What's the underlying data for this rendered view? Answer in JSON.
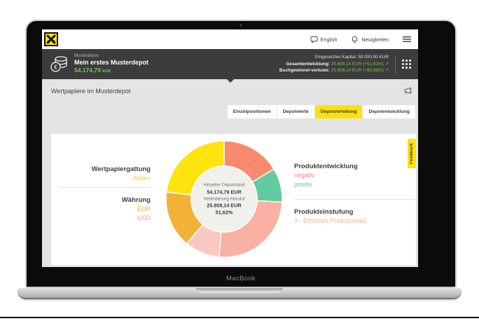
{
  "device": {
    "label": "MacBook"
  },
  "colors": {
    "accent_yellow": "#ffe10d",
    "logo_yellow": "#ffe600",
    "header_bg": "#3c3c3c",
    "green": "#7cc356",
    "content_bg": "#e4e4e4",
    "card_bg": "#ffffff"
  },
  "topbar": {
    "language_label": "English",
    "news_label": "Neuigkeiten"
  },
  "depot_header": {
    "eyebrow": "Musterdepot",
    "title": "Mein erstes Musterdepot",
    "value": "54.174,79",
    "value_currency": "EUR",
    "stats": [
      {
        "label": "Eingesetztes Kapital:",
        "value": "50.000,00 EUR",
        "value_color": "#e2e2e2"
      },
      {
        "label": "Gesamtentwicklung:",
        "value": "25.808,14 EUR (+51,62%)",
        "value_color": "#7cc356",
        "arrow": "↗"
      },
      {
        "label": "Buchgewinne/-verluste:",
        "value": "25.808,14 EUR (+90,98%)",
        "value_color": "#7cc356",
        "arrow": "↗"
      }
    ]
  },
  "page": {
    "heading": "Wertpapiere im Musterdepot"
  },
  "tabs": [
    {
      "label": "Einzelpositionen"
    },
    {
      "label": "Depotwerte"
    },
    {
      "label": "Depotverteilung"
    },
    {
      "label": "Depotentwicklung"
    }
  ],
  "active_tab_index": 2,
  "feedback_tab": {
    "label": "Feedback"
  },
  "legend": {
    "left": {
      "group1": {
        "heading": "Wertpapiergattung",
        "item1": {
          "label": "Aktien",
          "color": "#fec72f"
        }
      },
      "group2": {
        "heading": "Währung",
        "item1": {
          "label": "EUR",
          "color": "#f5a93a"
        },
        "item2": {
          "label": "USD",
          "color": "#f89a8a"
        }
      }
    },
    "right": {
      "group1": {
        "heading": "Produktentwicklung",
        "item1": {
          "label": "negativ",
          "color": "#f98a6d"
        },
        "item2": {
          "label": "positiv",
          "color": "#5fc998"
        }
      },
      "group2": {
        "heading": "Produkteinstufung",
        "item1": {
          "label": "3 - Erhöhtes Produktrisiko",
          "color": "#f8afa0"
        }
      }
    }
  },
  "chart_data": {
    "type": "pie",
    "variant": "donut",
    "start_angle_deg": 0,
    "inner_radius_ratio": 0.57,
    "center_fill": "#f2f0ec",
    "segments": [
      {
        "name": "segment-coral",
        "color": "#f98a6d",
        "angle_deg": 59,
        "percent": 16.4
      },
      {
        "name": "segment-teal",
        "color": "#63cba0",
        "angle_deg": 34,
        "percent": 9.4
      },
      {
        "name": "segment-salmon",
        "color": "#f8b1a2",
        "angle_deg": 92,
        "percent": 25.6
      },
      {
        "name": "segment-lightpink",
        "color": "#f9c9c0",
        "angle_deg": 35,
        "percent": 9.7
      },
      {
        "name": "segment-amber",
        "color": "#f2b237",
        "angle_deg": 57,
        "percent": 15.8
      },
      {
        "name": "segment-yellow",
        "color": "#ffe30e",
        "angle_deg": 83,
        "percent": 23.1
      }
    ],
    "center_labels": {
      "line1": "Aktueller Depotstand",
      "line2": "54.174,79 EUR",
      "line3": "Veränderung Absolut",
      "line4": "25.808,14 EUR",
      "line5": "51,62%"
    }
  }
}
